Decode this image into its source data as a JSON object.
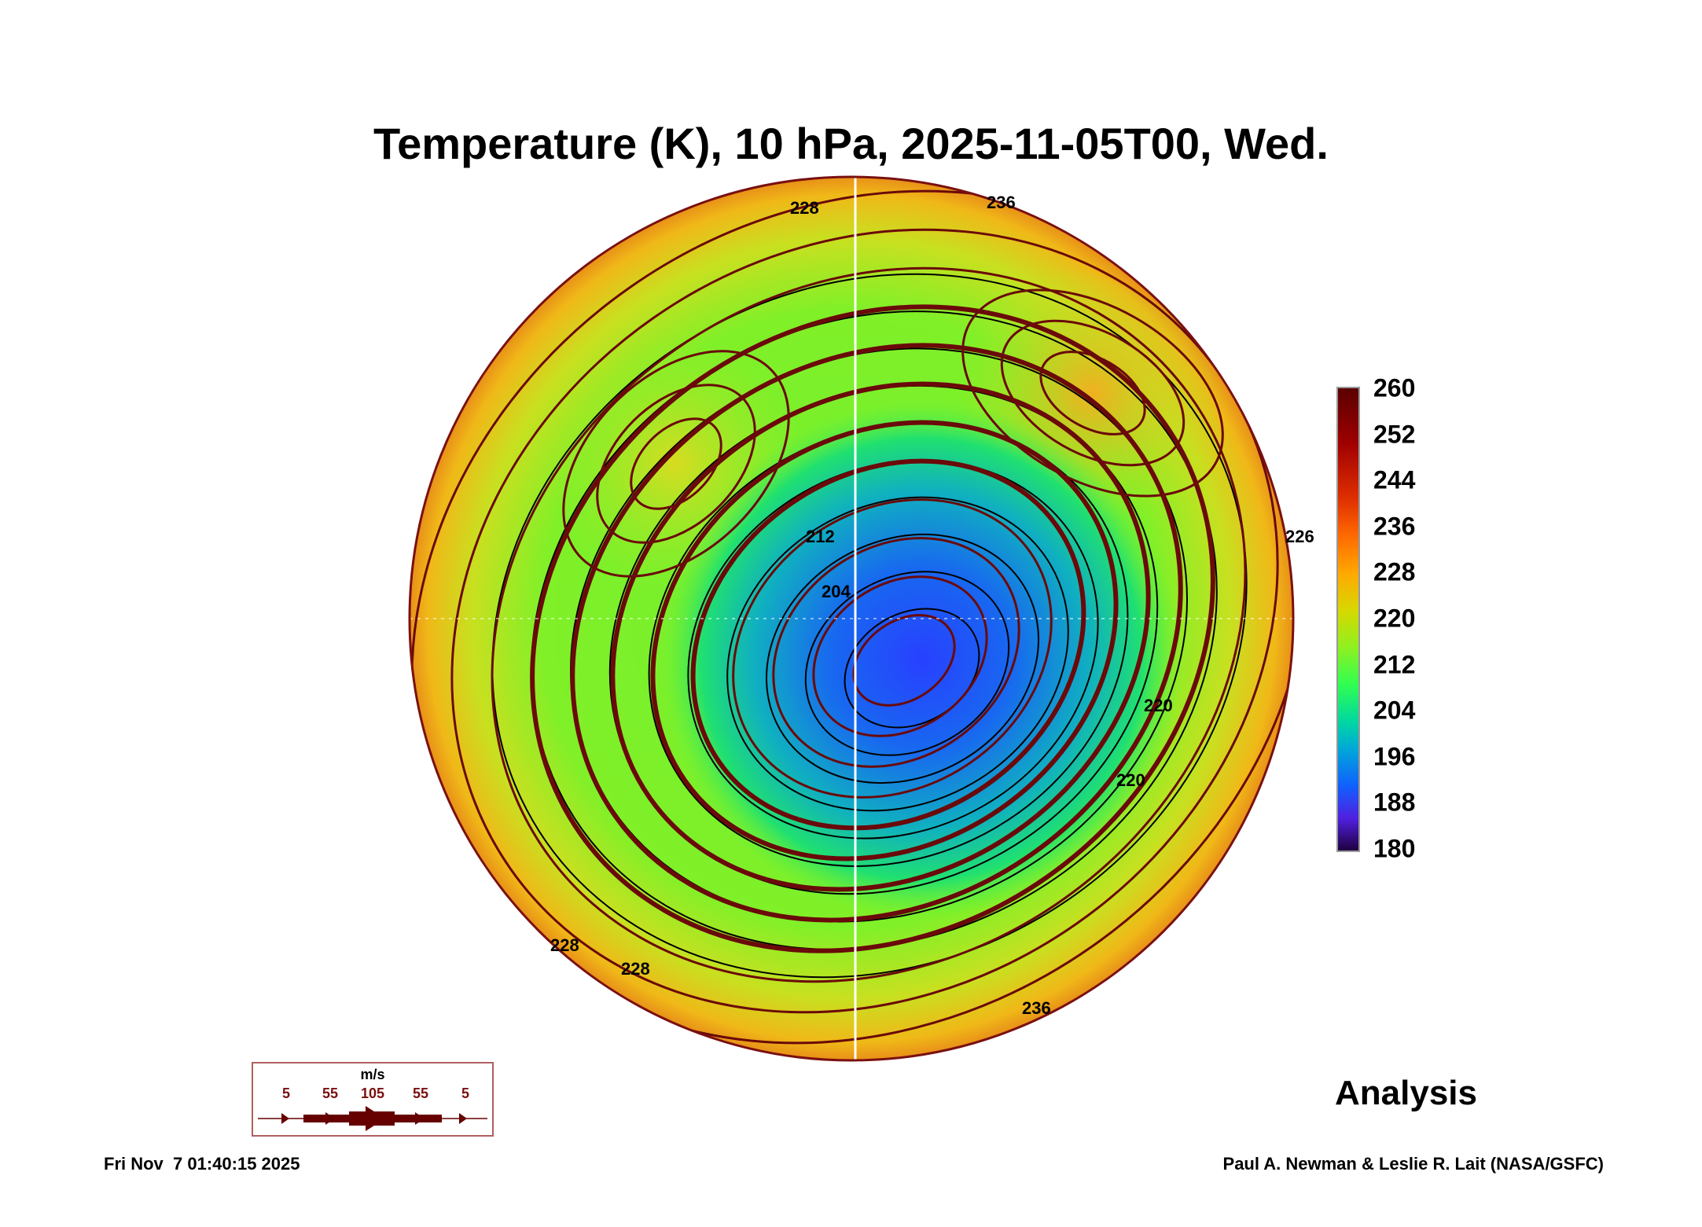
{
  "title": "Temperature (K), 10 hPa, 2025-11-05T00, Wed.",
  "chart_data": {
    "type": "heatmap",
    "title": "Temperature (K), 10 hPa, 2025-11-05T00, Wed.",
    "projection": "north polar stereographic",
    "variable": "Temperature (K)",
    "level": "10 hPa",
    "colorbar": {
      "ticks": [
        "260",
        "252",
        "244",
        "236",
        "228",
        "220",
        "212",
        "204",
        "196",
        "188",
        "180"
      ],
      "range": [
        180,
        260
      ]
    },
    "contour_labels": [
      "228",
      "236",
      "212",
      "204",
      "220",
      "228",
      "236",
      "228",
      "226",
      "220"
    ],
    "wind_legend": {
      "unit": "m/s",
      "speeds": [
        "5",
        "55",
        "105",
        "55",
        "5"
      ]
    },
    "colors": {
      "streamline": "#6a0a0a",
      "coast": "#ffffff",
      "contour": "#000000"
    }
  },
  "label": "Analysis",
  "timestamp": "Fri Nov  7 01:40:15 2025",
  "credit": "Paul A. Newman & Leslie R. Lait (NASA/GSFC)"
}
